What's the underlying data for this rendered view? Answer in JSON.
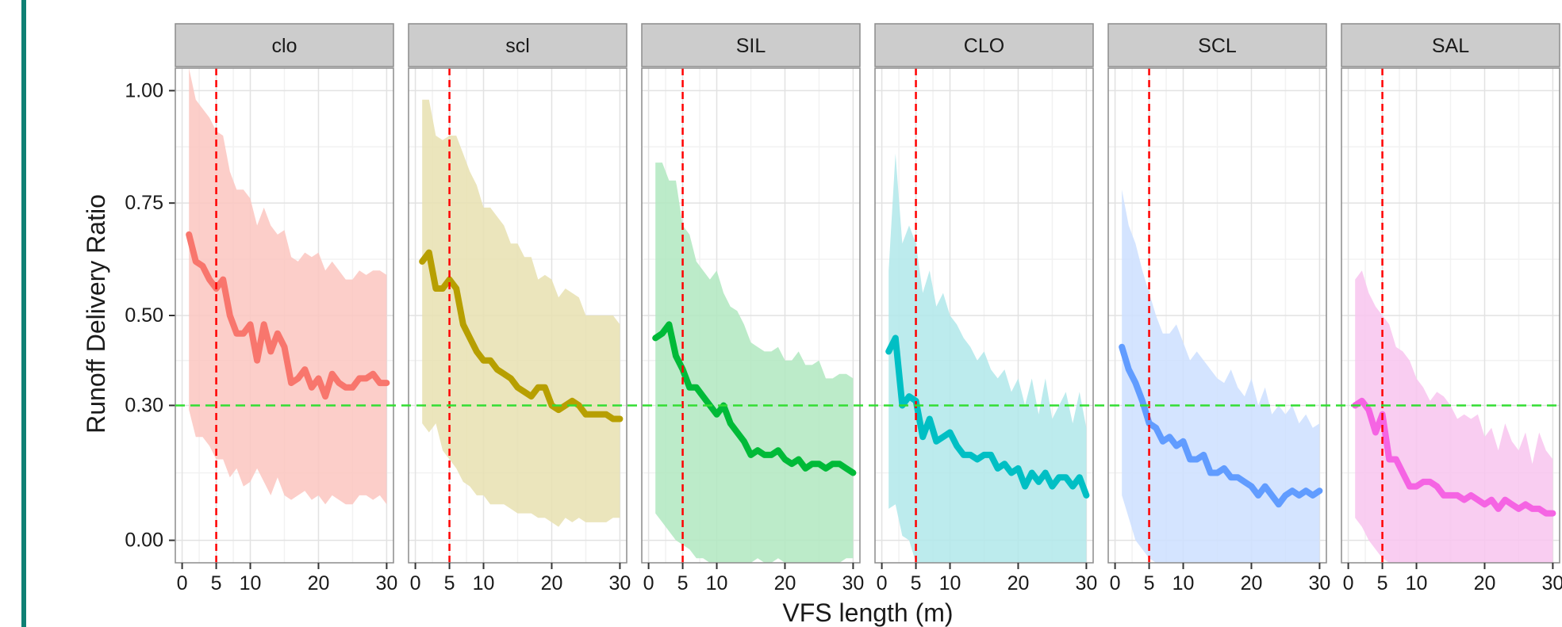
{
  "colors": {
    "ref_vertical": "#ff0000",
    "ref_horizontal": "#33dd33",
    "strip_bg": "#cccccc",
    "panel_border": "#8c8c8c",
    "grid_major": "#e2e2e2",
    "grid_minor": "#f2f2f2",
    "accent_rule": "#0f8074"
  },
  "chart_data": {
    "type": "line",
    "layout": "faceted",
    "xlabel": "VFS length (m)",
    "ylabel": "Runoff Delivery Ratio",
    "xlim": [
      -1,
      31
    ],
    "ylim": [
      -0.05,
      1.05
    ],
    "x_ticks": [
      0,
      5,
      10,
      20,
      30
    ],
    "x_tick_labels": [
      "0",
      "5",
      "10",
      "20",
      "30"
    ],
    "y_ticks": [
      0.0,
      0.3,
      0.5,
      0.75,
      1.0
    ],
    "y_tick_labels": [
      "0.00",
      "0.30",
      "0.50",
      "0.75",
      "1.00"
    ],
    "reference_lines": {
      "vertical_x": 5,
      "horizontal_y": 0.3,
      "style": "dashed"
    },
    "x": [
      1,
      2,
      3,
      4,
      5,
      6,
      7,
      8,
      9,
      10,
      11,
      12,
      13,
      14,
      15,
      16,
      17,
      18,
      19,
      20,
      21,
      22,
      23,
      24,
      25,
      26,
      27,
      28,
      29,
      30
    ],
    "grid": true,
    "panels": [
      {
        "label": "clo",
        "color": "#f8766d",
        "fill": "#fcc5c0",
        "median": [
          0.68,
          0.62,
          0.61,
          0.58,
          0.56,
          0.58,
          0.5,
          0.46,
          0.46,
          0.48,
          0.4,
          0.48,
          0.42,
          0.46,
          0.43,
          0.35,
          0.36,
          0.38,
          0.34,
          0.36,
          0.32,
          0.37,
          0.35,
          0.34,
          0.34,
          0.36,
          0.36,
          0.37,
          0.35,
          0.35
        ],
        "upper": [
          1.05,
          0.98,
          0.96,
          0.94,
          0.91,
          0.9,
          0.82,
          0.78,
          0.78,
          0.76,
          0.7,
          0.74,
          0.7,
          0.68,
          0.69,
          0.63,
          0.62,
          0.64,
          0.63,
          0.64,
          0.6,
          0.62,
          0.6,
          0.58,
          0.58,
          0.6,
          0.59,
          0.6,
          0.6,
          0.59
        ],
        "lower": [
          0.29,
          0.23,
          0.23,
          0.21,
          0.18,
          0.18,
          0.14,
          0.16,
          0.12,
          0.13,
          0.16,
          0.13,
          0.1,
          0.14,
          0.1,
          0.09,
          0.1,
          0.11,
          0.09,
          0.1,
          0.08,
          0.1,
          0.09,
          0.08,
          0.08,
          0.1,
          0.1,
          0.09,
          0.1,
          0.08
        ]
      },
      {
        "label": "scl",
        "color": "#b79f00",
        "fill": "#e8e0b0",
        "median": [
          0.62,
          0.64,
          0.56,
          0.56,
          0.58,
          0.56,
          0.48,
          0.45,
          0.42,
          0.4,
          0.4,
          0.38,
          0.37,
          0.36,
          0.34,
          0.33,
          0.32,
          0.34,
          0.34,
          0.3,
          0.29,
          0.3,
          0.31,
          0.3,
          0.28,
          0.28,
          0.28,
          0.28,
          0.27,
          0.27
        ],
        "upper": [
          0.98,
          0.98,
          0.9,
          0.89,
          0.9,
          0.9,
          0.86,
          0.82,
          0.79,
          0.74,
          0.74,
          0.72,
          0.7,
          0.66,
          0.66,
          0.63,
          0.63,
          0.58,
          0.59,
          0.58,
          0.54,
          0.56,
          0.55,
          0.54,
          0.5,
          0.5,
          0.5,
          0.5,
          0.5,
          0.48
        ],
        "lower": [
          0.26,
          0.24,
          0.26,
          0.2,
          0.18,
          0.16,
          0.13,
          0.12,
          0.1,
          0.1,
          0.08,
          0.08,
          0.08,
          0.07,
          0.06,
          0.06,
          0.06,
          0.05,
          0.05,
          0.04,
          0.03,
          0.05,
          0.04,
          0.05,
          0.04,
          0.04,
          0.04,
          0.04,
          0.05,
          0.05
        ]
      },
      {
        "label": "SIL",
        "color": "#00ba38",
        "fill": "#b0e8c0",
        "median": [
          0.45,
          0.46,
          0.48,
          0.41,
          0.38,
          0.34,
          0.34,
          0.32,
          0.3,
          0.28,
          0.3,
          0.26,
          0.24,
          0.22,
          0.19,
          0.2,
          0.19,
          0.19,
          0.2,
          0.18,
          0.17,
          0.18,
          0.16,
          0.17,
          0.17,
          0.16,
          0.17,
          0.17,
          0.16,
          0.15
        ],
        "upper": [
          0.84,
          0.84,
          0.8,
          0.8,
          0.7,
          0.68,
          0.62,
          0.6,
          0.58,
          0.6,
          0.55,
          0.52,
          0.51,
          0.48,
          0.44,
          0.43,
          0.42,
          0.42,
          0.43,
          0.4,
          0.4,
          0.42,
          0.39,
          0.39,
          0.4,
          0.36,
          0.36,
          0.37,
          0.37,
          0.36
        ],
        "lower": [
          0.06,
          0.04,
          0.02,
          0.0,
          -0.01,
          -0.02,
          -0.04,
          -0.04,
          -0.05,
          -0.05,
          -0.05,
          -0.05,
          -0.05,
          -0.05,
          -0.05,
          -0.04,
          -0.05,
          -0.05,
          -0.04,
          -0.05,
          -0.05,
          -0.05,
          -0.05,
          -0.05,
          -0.05,
          -0.05,
          -0.05,
          -0.05,
          -0.04,
          -0.04
        ]
      },
      {
        "label": "CLO",
        "color": "#00bfc4",
        "fill": "#b0e8ea",
        "median": [
          0.42,
          0.45,
          0.3,
          0.32,
          0.31,
          0.23,
          0.27,
          0.22,
          0.23,
          0.24,
          0.21,
          0.19,
          0.19,
          0.18,
          0.19,
          0.19,
          0.16,
          0.17,
          0.15,
          0.16,
          0.12,
          0.15,
          0.13,
          0.15,
          0.12,
          0.14,
          0.14,
          0.12,
          0.14,
          0.1
        ],
        "upper": [
          0.6,
          0.86,
          0.66,
          0.7,
          0.66,
          0.55,
          0.6,
          0.52,
          0.55,
          0.5,
          0.48,
          0.45,
          0.43,
          0.4,
          0.42,
          0.38,
          0.36,
          0.38,
          0.33,
          0.36,
          0.3,
          0.36,
          0.28,
          0.36,
          0.27,
          0.3,
          0.33,
          0.26,
          0.33,
          0.25
        ],
        "lower": [
          0.07,
          0.08,
          0.01,
          0.0,
          -0.05,
          -0.05,
          -0.05,
          -0.05,
          -0.05,
          -0.05,
          -0.05,
          -0.05,
          -0.05,
          -0.05,
          -0.05,
          -0.05,
          -0.05,
          -0.05,
          -0.05,
          -0.05,
          -0.05,
          -0.05,
          -0.05,
          -0.05,
          -0.05,
          -0.05,
          -0.05,
          -0.05,
          -0.05,
          -0.05
        ]
      },
      {
        "label": "SCL",
        "color": "#619cff",
        "fill": "#cddfff",
        "median": [
          0.43,
          0.38,
          0.35,
          0.31,
          0.26,
          0.25,
          0.22,
          0.23,
          0.21,
          0.22,
          0.18,
          0.18,
          0.19,
          0.15,
          0.15,
          0.16,
          0.14,
          0.14,
          0.13,
          0.12,
          0.1,
          0.12,
          0.1,
          0.08,
          0.1,
          0.11,
          0.1,
          0.11,
          0.1,
          0.11
        ],
        "upper": [
          0.78,
          0.7,
          0.66,
          0.6,
          0.55,
          0.5,
          0.46,
          0.46,
          0.48,
          0.44,
          0.4,
          0.42,
          0.4,
          0.38,
          0.36,
          0.35,
          0.38,
          0.34,
          0.32,
          0.36,
          0.3,
          0.34,
          0.28,
          0.3,
          0.28,
          0.3,
          0.26,
          0.28,
          0.25,
          0.26
        ],
        "lower": [
          0.1,
          0.05,
          0.0,
          -0.02,
          -0.04,
          -0.05,
          -0.05,
          -0.05,
          -0.05,
          -0.05,
          -0.05,
          -0.05,
          -0.05,
          -0.05,
          -0.05,
          -0.05,
          -0.05,
          -0.05,
          -0.05,
          -0.05,
          -0.05,
          -0.05,
          -0.05,
          -0.05,
          -0.05,
          -0.05,
          -0.05,
          -0.05,
          -0.05,
          -0.05
        ]
      },
      {
        "label": "SAL",
        "color": "#f564e3",
        "fill": "#f8c4ef",
        "median": [
          0.3,
          0.31,
          0.29,
          0.24,
          0.28,
          0.18,
          0.18,
          0.15,
          0.12,
          0.12,
          0.13,
          0.13,
          0.12,
          0.1,
          0.1,
          0.1,
          0.09,
          0.1,
          0.09,
          0.08,
          0.09,
          0.07,
          0.09,
          0.08,
          0.07,
          0.08,
          0.07,
          0.07,
          0.06,
          0.06
        ],
        "upper": [
          0.58,
          0.6,
          0.55,
          0.52,
          0.5,
          0.48,
          0.43,
          0.42,
          0.4,
          0.36,
          0.34,
          0.31,
          0.33,
          0.32,
          0.3,
          0.27,
          0.28,
          0.27,
          0.28,
          0.23,
          0.25,
          0.2,
          0.26,
          0.22,
          0.2,
          0.24,
          0.17,
          0.24,
          0.2,
          0.18
        ],
        "lower": [
          0.05,
          0.03,
          0.0,
          -0.02,
          -0.04,
          -0.05,
          -0.05,
          -0.05,
          -0.05,
          -0.05,
          -0.05,
          -0.05,
          -0.05,
          -0.05,
          -0.05,
          -0.05,
          -0.05,
          -0.05,
          -0.05,
          -0.05,
          -0.05,
          -0.05,
          -0.05,
          -0.05,
          -0.05,
          -0.05,
          -0.05,
          -0.05,
          -0.05,
          -0.05
        ]
      }
    ]
  }
}
